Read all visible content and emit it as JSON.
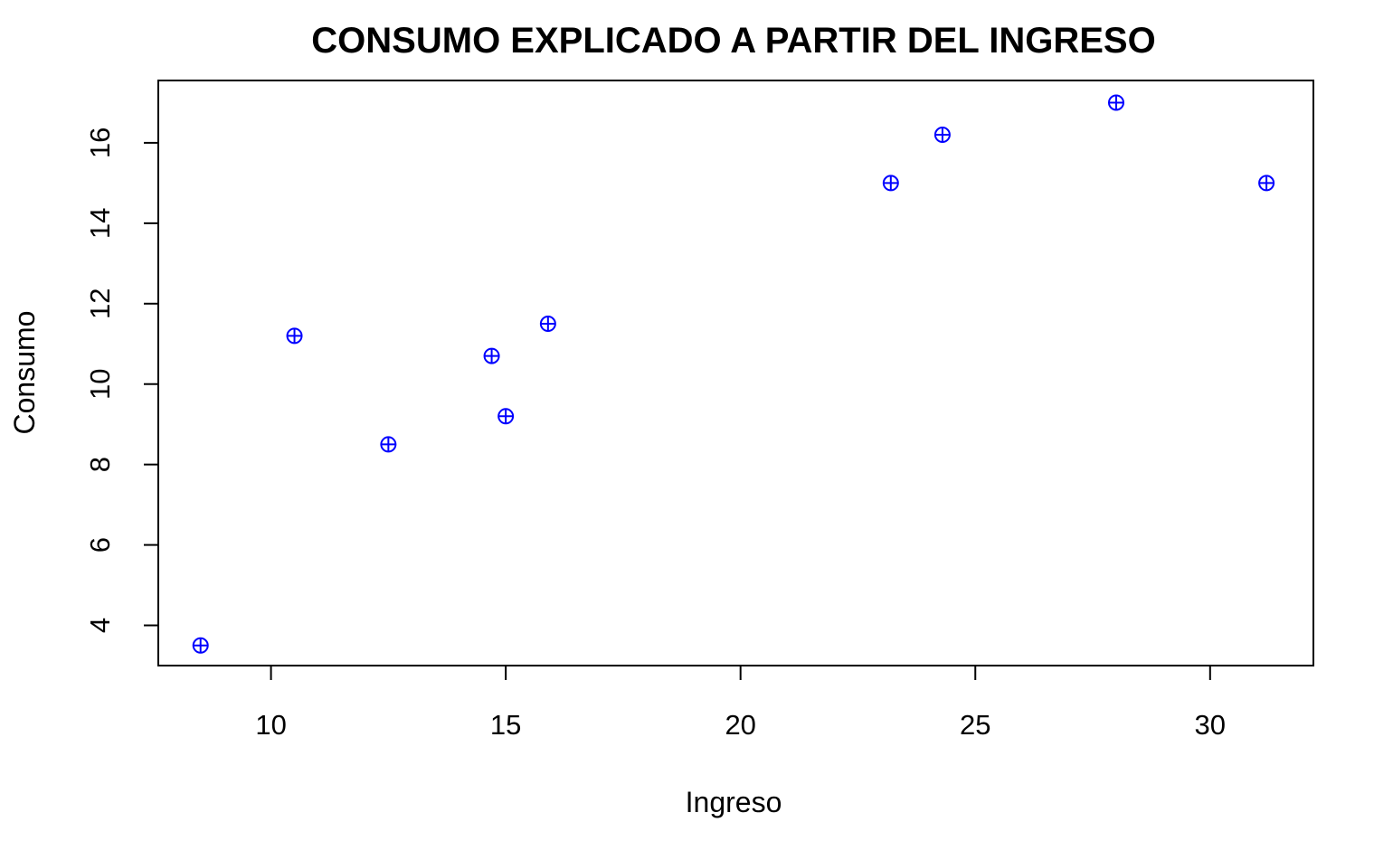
{
  "chart_data": {
    "type": "scatter",
    "title": "CONSUMO EXPLICADO A PARTIR DEL INGRESO",
    "xlabel": "Ingreso",
    "ylabel": "Consumo",
    "xlim": [
      7.6,
      32.2
    ],
    "ylim": [
      3.0,
      17.55
    ],
    "xticks": [
      10,
      15,
      20,
      25,
      30
    ],
    "yticks": [
      4,
      6,
      8,
      10,
      12,
      14,
      16
    ],
    "xtick_labels": [
      "10",
      "15",
      "20",
      "25",
      "30"
    ],
    "ytick_labels": [
      "4",
      "6",
      "8",
      "10",
      "12",
      "14",
      "16"
    ],
    "grid": false,
    "legend": "none",
    "marker": "circle-plus",
    "point_color": "#0000ff",
    "series": [
      {
        "points": [
          {
            "x": 8.5,
            "y": 3.5
          },
          {
            "x": 10.5,
            "y": 11.2
          },
          {
            "x": 12.5,
            "y": 8.5
          },
          {
            "x": 14.7,
            "y": 10.7
          },
          {
            "x": 15.0,
            "y": 9.2
          },
          {
            "x": 15.9,
            "y": 11.5
          },
          {
            "x": 23.2,
            "y": 15.0
          },
          {
            "x": 24.3,
            "y": 16.2
          },
          {
            "x": 28.0,
            "y": 17.0
          },
          {
            "x": 31.2,
            "y": 15.0
          }
        ]
      }
    ]
  }
}
